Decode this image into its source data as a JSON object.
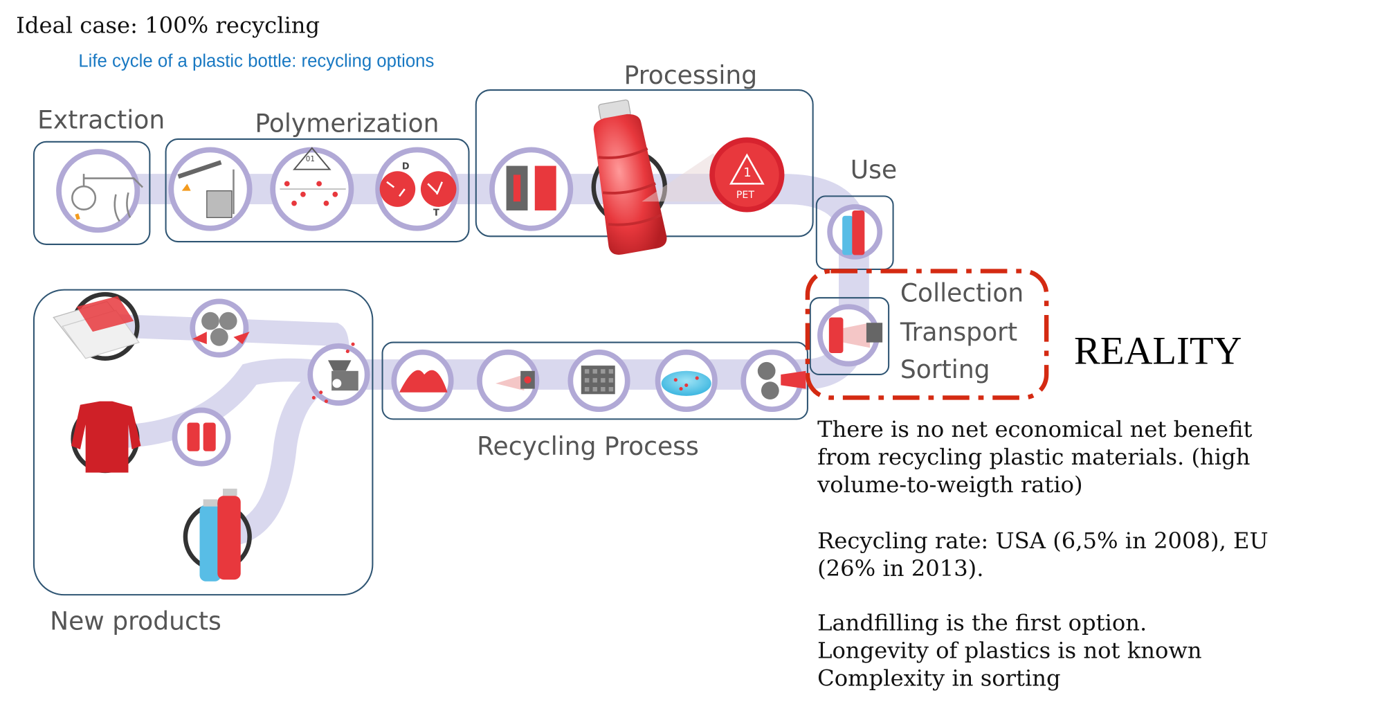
{
  "title": "Ideal case: 100% recycling",
  "subtitle": "Life cycle of a plastic bottle: recycling options",
  "stages": {
    "extraction": "Extraction",
    "polymerization": "Polymerization",
    "processing": "Processing",
    "use": "Use",
    "recycling": "Recycling Process",
    "new_products": "New products"
  },
  "collection": [
    "Collection",
    "Transport",
    "Sorting"
  ],
  "reality": "REALITY",
  "notes": {
    "benefit": [
      "There is no net economical net benefit",
      "from recycling plastic materials. (high",
      "volume-to-weigth ratio)"
    ],
    "rate": [
      "Recycling rate: USA (6,5% in 2008), EU",
      "(26% in 2013)."
    ],
    "issues": [
      "Landfilling is the first option.",
      "Longevity of plastics is not known",
      "Complexity in sorting"
    ]
  },
  "symbols": {
    "pet_code": "1",
    "pet_text": "PET",
    "code_01": "01",
    "d_label": "D",
    "t_label": "T"
  },
  "colors": {
    "frame": "#2f5573",
    "flow": "#d9d8ee",
    "ring": "#b1a9d6",
    "red": "#e8383d",
    "blue": "#58bde6",
    "dashed": "#d42a12",
    "subtitle": "#1878c2"
  }
}
